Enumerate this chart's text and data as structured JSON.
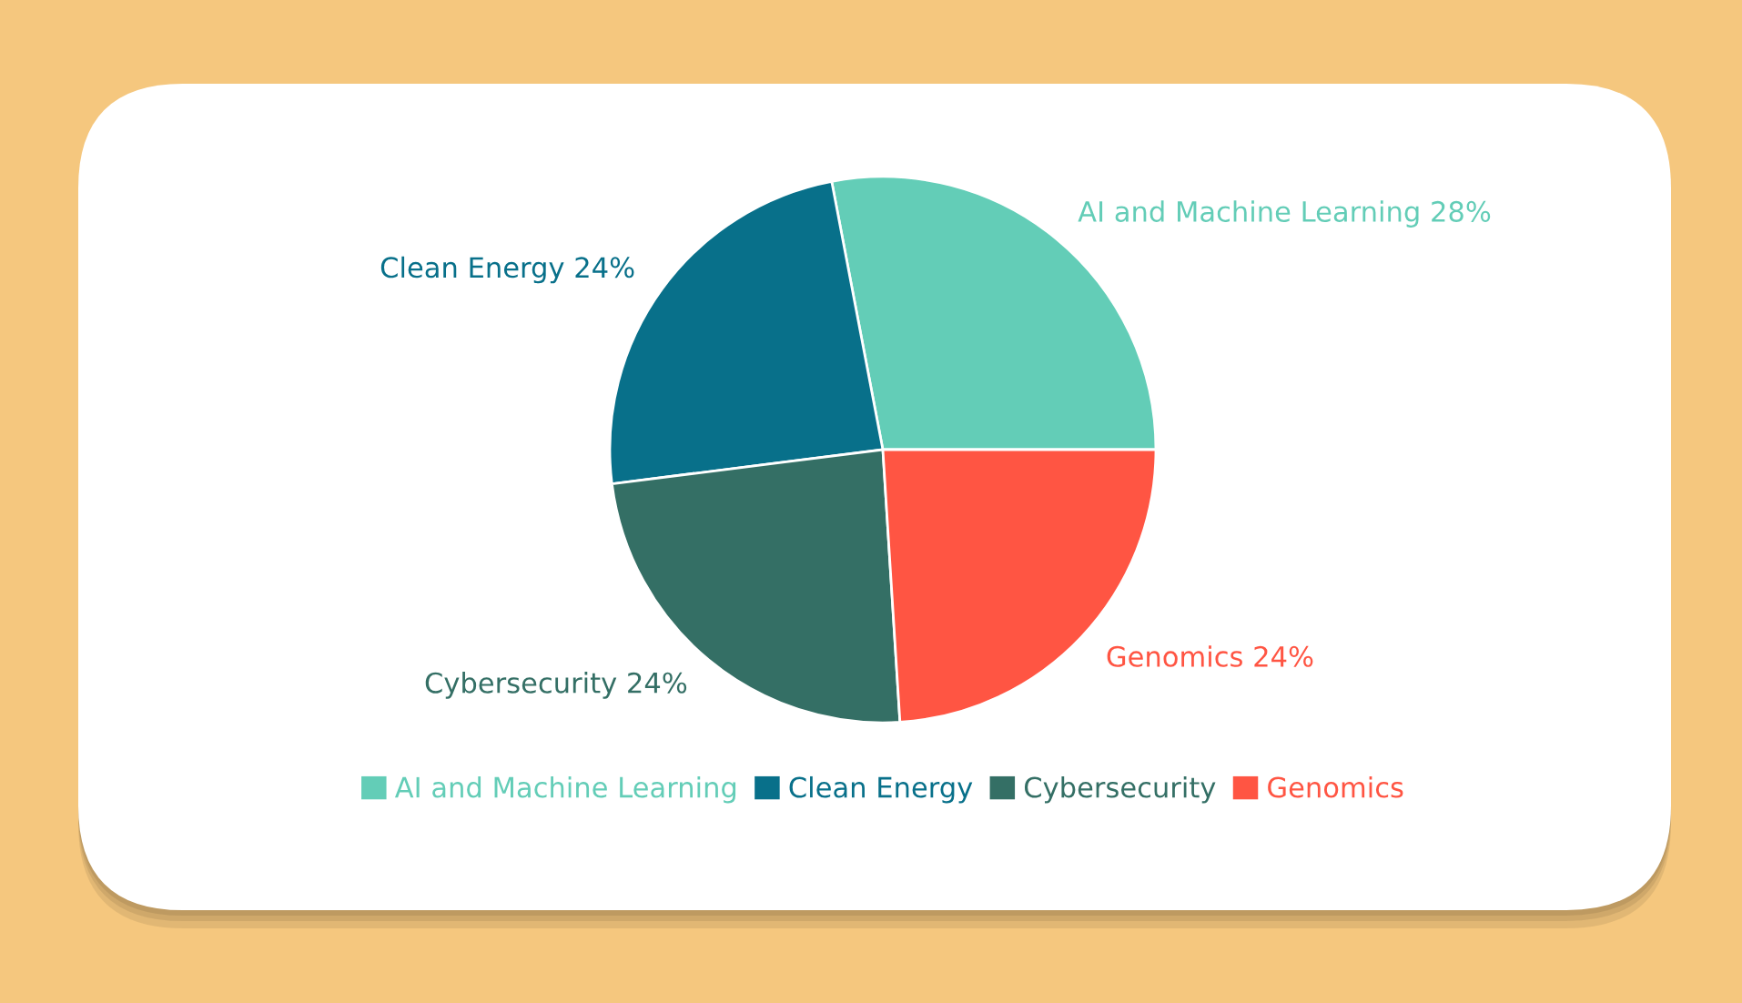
{
  "chart_data": {
    "type": "pie",
    "categories": [
      "AI and Machine Learning",
      "Clean Energy",
      "Cybersecurity",
      "Genomics"
    ],
    "values": [
      28,
      24,
      24,
      24
    ],
    "value_labels": [
      "28%",
      "24%",
      "24%",
      "24%"
    ],
    "colors": [
      "#63cdb7",
      "#08708a",
      "#346f65",
      "#ff5543"
    ],
    "legend": "bottom"
  }
}
